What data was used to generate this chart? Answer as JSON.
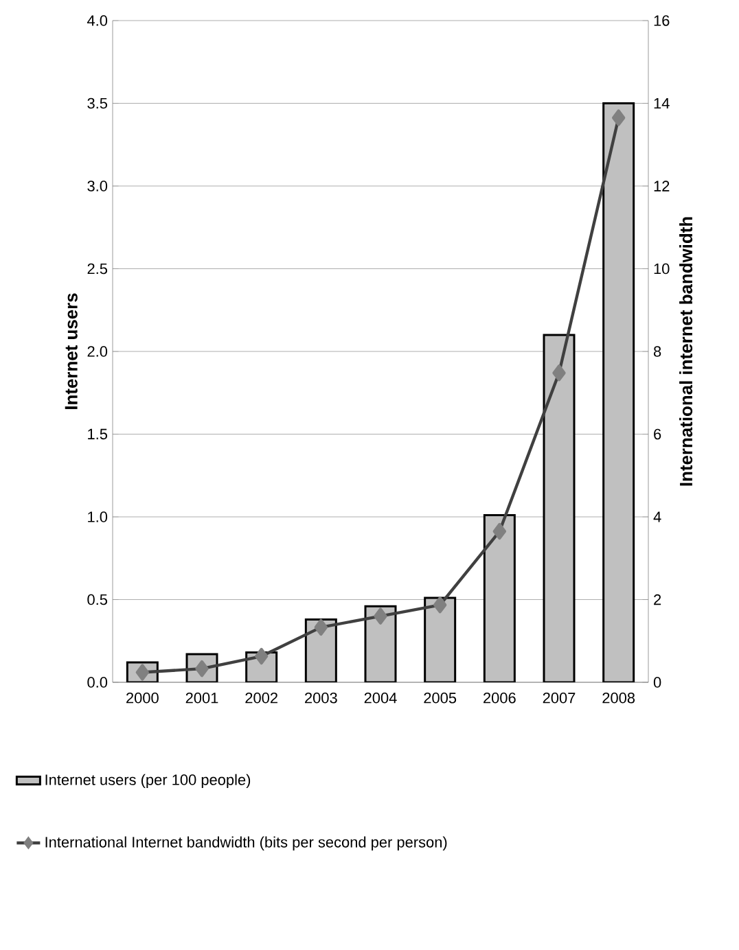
{
  "chart_data": {
    "type": "bar",
    "categories": [
      "2000",
      "2001",
      "2002",
      "2003",
      "2004",
      "2005",
      "2006",
      "2007",
      "2008"
    ],
    "ylabel": "Internet users",
    "y2label": "International internet bandwidth",
    "series": [
      {
        "name": "Internet users (per 100 people)",
        "color": "#c0c0c0",
        "values": [
          0.12,
          0.17,
          0.18,
          0.38,
          0.46,
          0.51,
          1.01,
          2.1,
          3.5
        ]
      },
      {
        "name": "International Internet bandwidth (bits per second per person)",
        "type": "line",
        "axis": "y2",
        "color": "#404040",
        "marker": "diamond",
        "values": [
          0.24,
          0.33,
          0.63,
          1.33,
          1.6,
          1.87,
          3.65,
          7.48,
          13.65
        ]
      }
    ],
    "ylim": [
      0,
      4
    ],
    "yticks": [
      {
        "value": 0,
        "label": "0.0"
      },
      {
        "value": 0.5,
        "label": "0.5"
      },
      {
        "value": 1,
        "label": "1.0"
      },
      {
        "value": 1.5,
        "label": "1.5"
      },
      {
        "value": 2,
        "label": "2.0"
      },
      {
        "value": 2.5,
        "label": "2.5"
      },
      {
        "value": 3,
        "label": "3.0"
      },
      {
        "value": 3.5,
        "label": "3.5"
      },
      {
        "value": 4,
        "label": "4.0"
      }
    ],
    "y2lim": [
      0,
      16
    ],
    "y2ticks": [
      0,
      2,
      4,
      6,
      8,
      10,
      12,
      14,
      16
    ],
    "grid": "y",
    "legend": "bottom left"
  }
}
